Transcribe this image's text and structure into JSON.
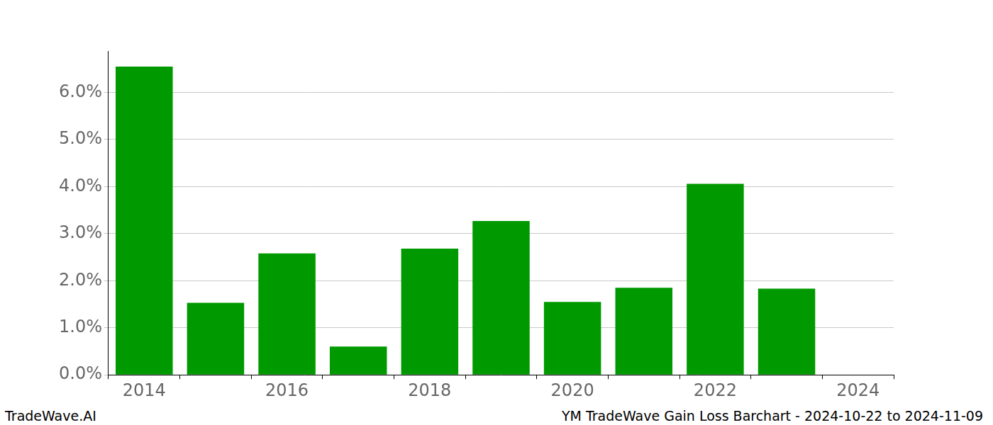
{
  "chart_data": {
    "type": "bar",
    "categories": [
      "2014",
      null,
      "2016",
      null,
      "2018",
      null,
      "2020",
      null,
      "2022",
      null,
      "2024"
    ],
    "values": [
      6.55,
      1.53,
      2.58,
      0.6,
      2.68,
      3.27,
      1.55,
      1.85,
      4.06,
      1.83,
      null
    ],
    "color": "#009900",
    "ylim": [
      0,
      6.88
    ],
    "yticks": [
      {
        "value": 0,
        "label": "0.0%"
      },
      {
        "value": 1,
        "label": "1.0%"
      },
      {
        "value": 2,
        "label": "2.0%"
      },
      {
        "value": 3,
        "label": "3.0%"
      },
      {
        "value": 4,
        "label": "4.0%"
      },
      {
        "value": 5,
        "label": "5.0%"
      },
      {
        "value": 6,
        "label": "6.0%"
      }
    ],
    "grid": true,
    "annotations": [
      "TradeWave.AI",
      "YM TradeWave Gain Loss Barchart - 2024-10-22 to 2024-11-09"
    ]
  }
}
